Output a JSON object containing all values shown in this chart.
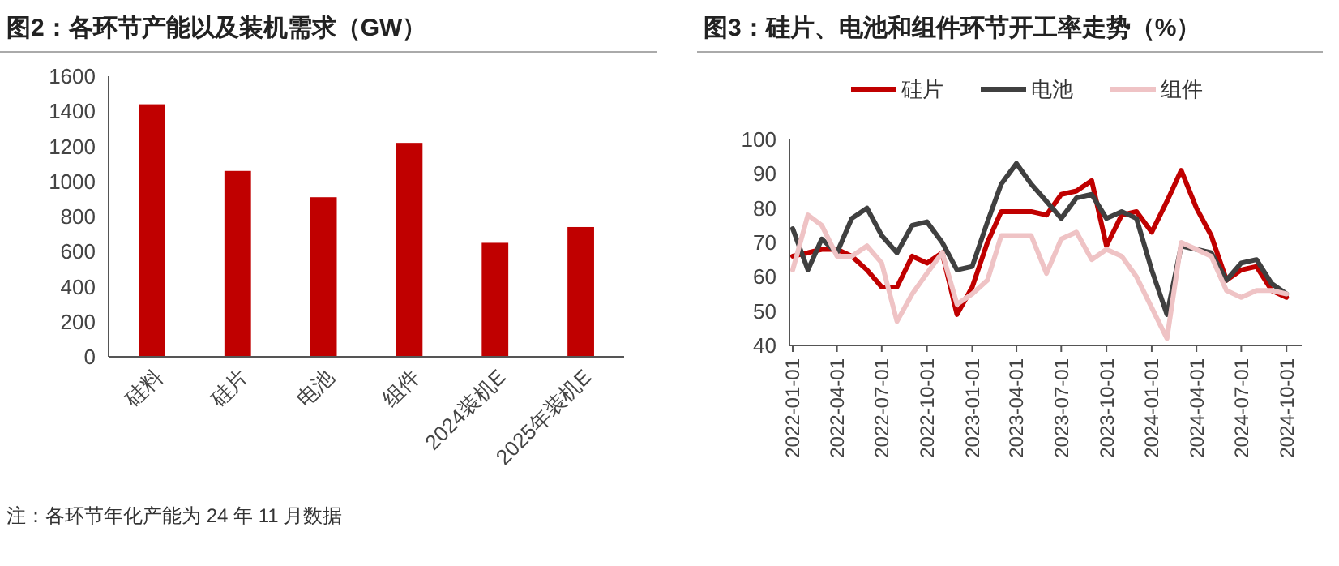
{
  "chart_data": [
    {
      "type": "bar",
      "title": "图2：各环节产能以及装机需求（GW）",
      "categories": [
        "硅料",
        "硅片",
        "电池",
        "组件",
        "2024装机E",
        "2025年装机E"
      ],
      "values": [
        1440,
        1060,
        910,
        1220,
        650,
        740
      ],
      "color": "#c00000",
      "ylim": [
        0,
        1600
      ],
      "yticks": [
        0,
        200,
        400,
        600,
        800,
        1000,
        1200,
        1400,
        1600
      ],
      "grid": false,
      "annotations": [
        "注：各环节年化产能为 24 年 11 月数据"
      ]
    },
    {
      "type": "line",
      "title": "图3：硅片、电池和组件环节开工率走势（%）",
      "x": [
        "2022-01",
        "2022-02",
        "2022-03",
        "2022-04",
        "2022-05",
        "2022-06",
        "2022-07",
        "2022-08",
        "2022-09",
        "2022-10",
        "2022-11",
        "2022-12",
        "2023-01",
        "2023-02",
        "2023-03",
        "2023-04",
        "2023-05",
        "2023-06",
        "2023-07",
        "2023-08",
        "2023-09",
        "2023-10",
        "2023-11",
        "2023-12",
        "2024-01",
        "2024-02",
        "2024-03",
        "2024-04",
        "2024-05",
        "2024-06",
        "2024-07",
        "2024-08",
        "2024-09",
        "2024-10"
      ],
      "series": [
        {
          "name": "硅片",
          "color": "#c00000",
          "values": [
            66,
            67,
            68,
            68,
            66,
            62,
            57,
            57,
            66,
            64,
            67,
            49,
            57,
            70,
            79,
            79,
            79,
            78,
            84,
            85,
            88,
            69,
            78,
            79,
            73,
            82,
            91,
            80,
            72,
            59,
            62,
            63,
            56,
            54
          ]
        },
        {
          "name": "电池",
          "color": "#404040",
          "values": [
            74,
            62,
            71,
            67,
            77,
            80,
            72,
            67,
            75,
            76,
            70,
            62,
            63,
            76,
            87,
            93,
            87,
            82,
            77,
            83,
            84,
            77,
            79,
            77,
            62,
            49,
            69,
            68,
            67,
            59,
            64,
            65,
            58,
            55
          ]
        },
        {
          "name": "组件",
          "color": "#efc3c5",
          "values": [
            62,
            78,
            75,
            66,
            66,
            69,
            64,
            47,
            55,
            61,
            67,
            52,
            55,
            59,
            72,
            72,
            72,
            61,
            71,
            73,
            65,
            68,
            66,
            60,
            51,
            42,
            70,
            68,
            66,
            56,
            54,
            56,
            56,
            55
          ]
        }
      ],
      "xlim": [
        "2022-01-01",
        "2024-11-01"
      ],
      "xticks": [
        {
          "value": "2022-01-01",
          "label": "2022-01-01"
        },
        {
          "value": "2022-04-01",
          "label": "2022-04-01"
        },
        {
          "value": "2022-07-01",
          "label": "2022-07-01"
        },
        {
          "value": "2022-10-01",
          "label": "2022-10-01"
        },
        {
          "value": "2023-01-01",
          "label": "2023-01-01"
        },
        {
          "value": "2023-04-01",
          "label": "2023-04-01"
        },
        {
          "value": "2023-07-01",
          "label": "2023-07-01"
        },
        {
          "value": "2023-10-01",
          "label": "2023-10-01"
        },
        {
          "value": "2024-01-01",
          "label": "2024-01-01"
        },
        {
          "value": "2024-04-01",
          "label": "2024-04-01"
        },
        {
          "value": "2024-07-01",
          "label": "2024-07-01"
        },
        {
          "value": "2024-10-01",
          "label": "2024-10-01"
        }
      ],
      "ylim": [
        40,
        100
      ],
      "yticks": [
        40,
        50,
        60,
        70,
        80,
        90,
        100
      ],
      "grid": false,
      "legend": "top",
      "marker": "none",
      "line_style": "solid"
    }
  ]
}
